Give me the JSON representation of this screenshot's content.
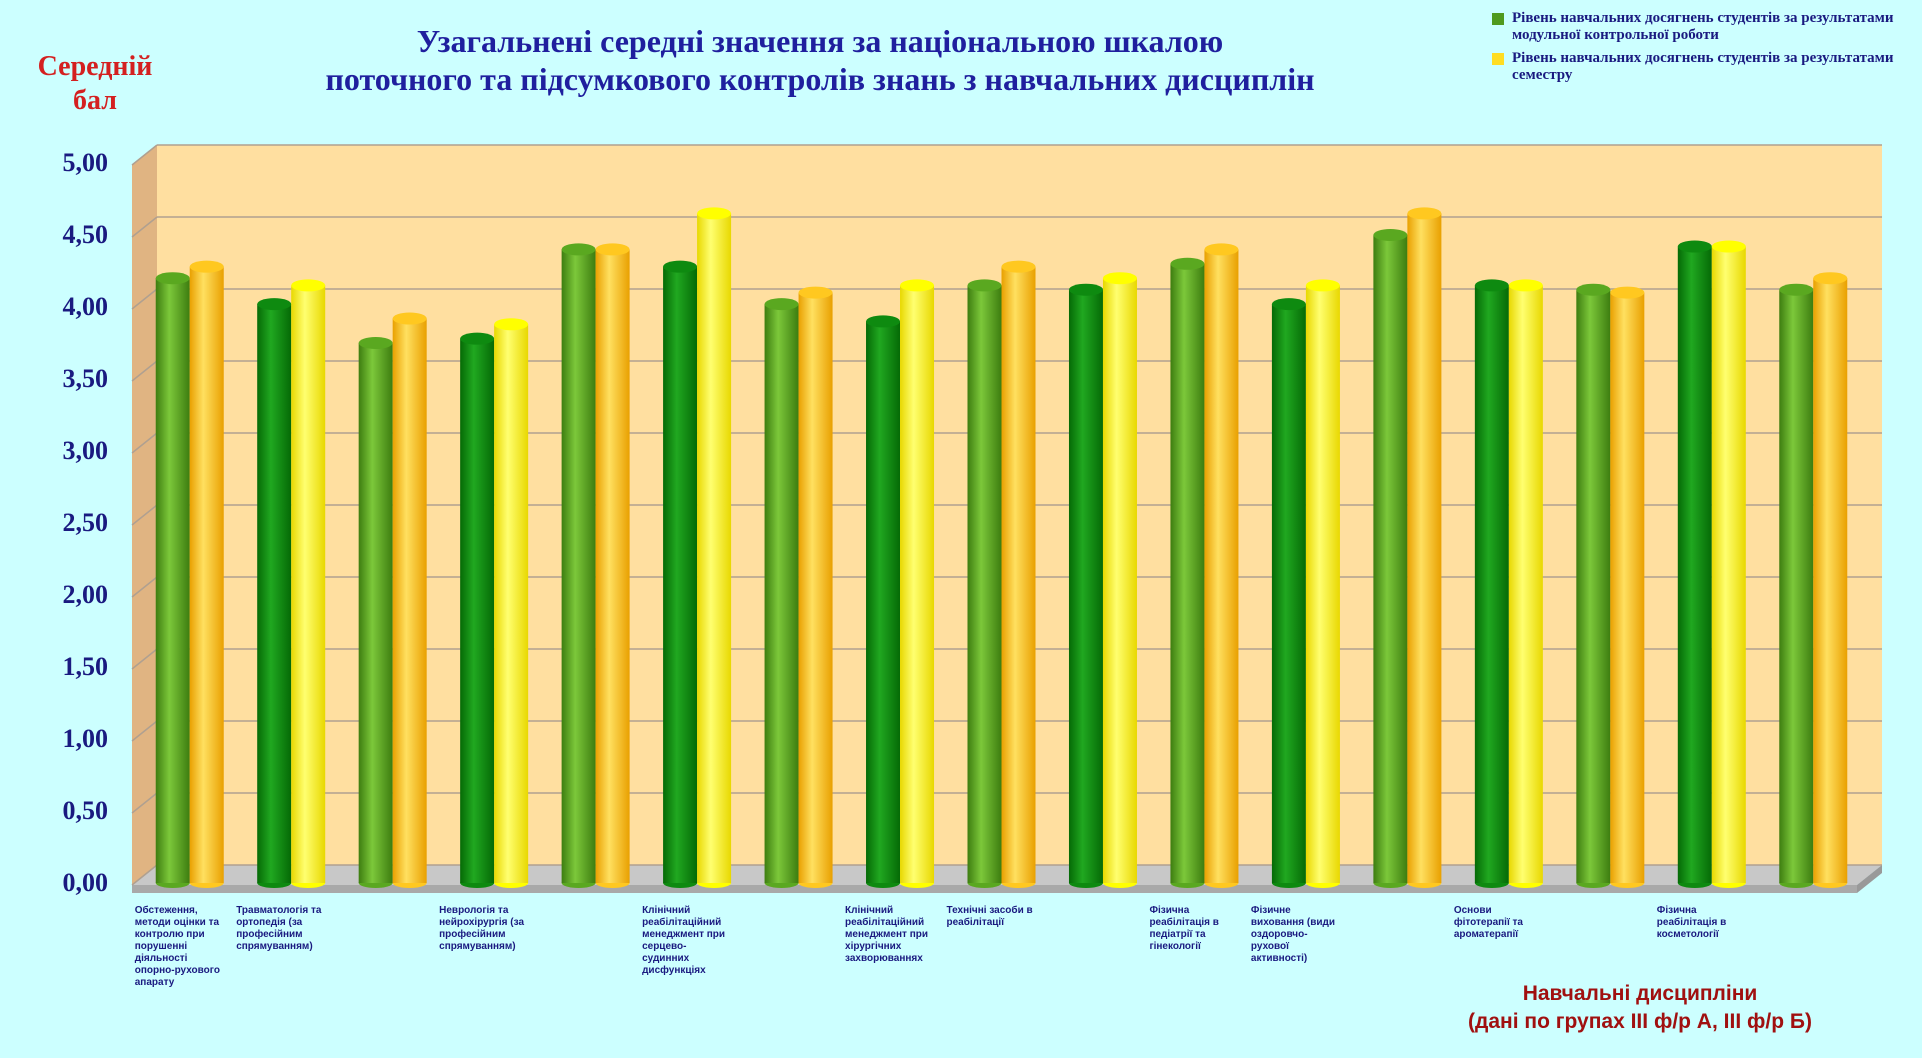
{
  "chart_data": {
    "type": "bar",
    "title": [
      "Узагальнені середні значення за національною шкалою",
      "поточного та підсумкового контролів знань з навчальних дисциплін"
    ],
    "y_label": "Середній бал",
    "x_label": [
      "Навчальні дисципліни",
      "(дані по групах III ф/р А, III ф/р Б)"
    ],
    "categories": [
      "Обстеження, методи оцінки та контролю при порушенні діяльності опорно-рухового апарату",
      "Травматологія та ортопедія (за професійним спрямуванням)",
      null,
      "Неврологія та нейрохірургія (за професійним спрямуванням)",
      null,
      "Клінічний реабілітаційний менеджмент при серцево-судинних дисфункціях",
      null,
      "Клінічний реабілітаційний менеджмент при хірургічних захворюваннях",
      "Технічні засоби в реабілітації",
      null,
      "Фізична реабілітація в педіатрії та гінекології",
      "Фізичне виховання (види оздоровчо-рухової активності)",
      null,
      "Основи фітотерапії та ароматерапії",
      null,
      "Фізична реабілітація в косметології",
      null
    ],
    "series": [
      {
        "name": "Рівень навчальних досягнень студентів за результатами модульної контрольної роботи",
        "color": "#4f9a1e",
        "colors": [
          "#5aa820",
          "#0e8a10"
        ],
        "values": [
          4.2,
          4.02,
          3.75,
          3.78,
          4.4,
          4.28,
          4.02,
          3.9,
          4.15,
          4.12,
          4.3,
          4.02,
          4.5,
          4.15,
          4.12,
          4.42,
          4.12
        ]
      },
      {
        "name": "Рівень навчальних досягнень студентів за результатами семестру",
        "color": "#ffdd22",
        "colors": [
          "#ffc820",
          "#ffff00"
        ],
        "values": [
          4.28,
          4.15,
          3.92,
          3.88,
          4.4,
          4.65,
          4.1,
          4.15,
          4.28,
          4.2,
          4.4,
          4.15,
          4.65,
          4.15,
          4.1,
          4.42,
          4.2
        ]
      }
    ],
    "ylim": [
      0,
      5
    ],
    "yticks": [
      {
        "value": 0,
        "label": "0,00"
      },
      {
        "value": 0.5,
        "label": "0,50"
      },
      {
        "value": 1,
        "label": "1,00"
      },
      {
        "value": 1.5,
        "label": "1,50"
      },
      {
        "value": 2,
        "label": "2,00"
      },
      {
        "value": 2.5,
        "label": "2,50"
      },
      {
        "value": 3,
        "label": "3,00"
      },
      {
        "value": 3.5,
        "label": "3,50"
      },
      {
        "value": 4,
        "label": "4,00"
      },
      {
        "value": 4.5,
        "label": "4,50"
      },
      {
        "value": 5,
        "label": "5,00"
      }
    ],
    "grid": true,
    "legend": "top-right"
  }
}
